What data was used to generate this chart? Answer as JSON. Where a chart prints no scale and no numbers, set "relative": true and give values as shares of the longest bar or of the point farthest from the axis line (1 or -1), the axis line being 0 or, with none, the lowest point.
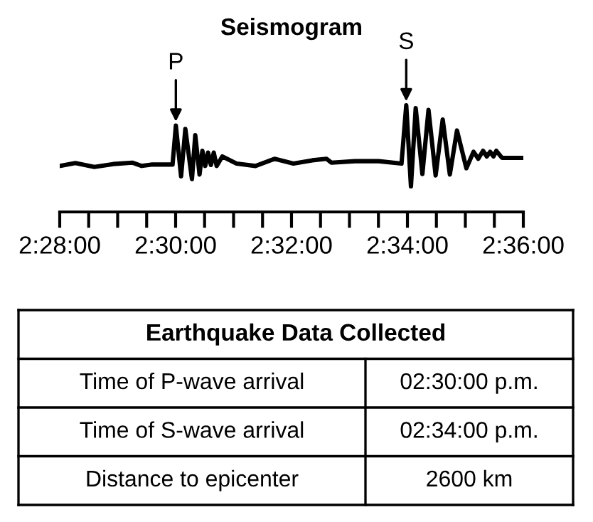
{
  "chart_data": [
    {
      "type": "line",
      "title": "Seismogram",
      "relative": true,
      "marker": "none",
      "line_style": "solid",
      "grid": false,
      "legend": false,
      "tick_labels": "x",
      "x": [
        2.46667,
        2.47117,
        2.47662,
        2.48207,
        2.48753,
        2.49025,
        2.49298,
        2.49912,
        2.50007,
        2.50157,
        2.5028,
        2.5047,
        2.50565,
        2.50688,
        2.5077,
        2.50852,
        2.50933,
        2.51015,
        2.51097,
        2.5118,
        2.51343,
        2.51752,
        2.52297,
        2.52843,
        2.53388,
        2.53933,
        2.54342,
        2.54478,
        2.5516,
        2.55842,
        2.56497,
        2.56633,
        2.56768,
        2.56905,
        2.57097,
        2.57273,
        2.57478,
        2.57682,
        2.57887,
        2.58092,
        2.58363,
        2.58568,
        2.58705,
        2.58842,
        2.5895,
        2.59045,
        2.59142,
        2.59223,
        2.59387,
        2.6
      ],
      "series": [
        {
          "color": "#000000",
          "values": [
            0.431,
            0.458,
            0.422,
            0.449,
            0.462,
            0.431,
            0.444,
            0.444,
            0.809,
            0.333,
            0.778,
            0.307,
            0.72,
            0.351,
            0.573,
            0.431,
            0.556,
            0.44,
            0.556,
            0.431,
            0.52,
            0.453,
            0.431,
            0.498,
            0.453,
            0.484,
            0.498,
            0.462,
            0.476,
            0.476,
            0.453,
            1.0,
            0.24,
            0.973,
            0.356,
            0.956,
            0.342,
            0.867,
            0.351,
            0.764,
            0.409,
            0.564,
            0.498,
            0.573,
            0.52,
            0.564,
            0.52,
            0.573,
            0.507,
            0.507
          ]
        }
      ],
      "xlim": [
        2.46667,
        2.6
      ],
      "xticks": [
        {
          "value": 2.46667,
          "label": "2:28:00"
        },
        {
          "value": 2.475,
          "label": null
        },
        {
          "value": 2.48333,
          "label": null
        },
        {
          "value": 2.49167,
          "label": null
        },
        {
          "value": 2.5,
          "label": "2:30:00"
        },
        {
          "value": 2.50833,
          "label": null
        },
        {
          "value": 2.51667,
          "label": null
        },
        {
          "value": 2.525,
          "label": null
        },
        {
          "value": 2.53333,
          "label": "2:32:00"
        },
        {
          "value": 2.54167,
          "label": null
        },
        {
          "value": 2.55,
          "label": null
        },
        {
          "value": 2.55833,
          "label": null
        },
        {
          "value": 2.56667,
          "label": "2:34:00"
        },
        {
          "value": 2.575,
          "label": null
        },
        {
          "value": 2.58333,
          "label": null
        },
        {
          "value": 2.59167,
          "label": null
        },
        {
          "value": 2.6,
          "label": "2:36:00"
        }
      ],
      "annotations": [
        {
          "text": "P",
          "x": 2.50007,
          "y": 0.809
        },
        {
          "text": "S",
          "x": 2.56633,
          "y": 1.0
        }
      ]
    },
    {
      "type": "other",
      "title": "Earthquake Data Collected",
      "annotations": [
        "Time of P-wave arrival",
        "02:30:00 p.m.",
        "Time of S-wave arrival",
        "02:34:00 p.m.",
        "Distance to epicenter",
        "2600 km"
      ]
    }
  ]
}
